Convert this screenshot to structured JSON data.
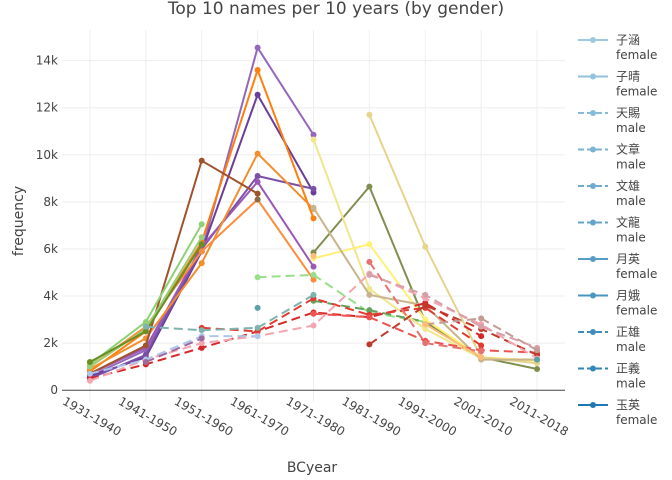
{
  "chart_data": {
    "type": "line",
    "title": "Top 10 names per 10 years (by gender)",
    "xlabel": "BCyear",
    "ylabel": "frequency",
    "categories": [
      "1931-1940",
      "1941-1950",
      "1951-1960",
      "1961-1970",
      "1971-1980",
      "1981-1990",
      "1991-2000",
      "2001-2010",
      "2011-2018"
    ],
    "y_ticks": [
      {
        "value": 0,
        "label": "0"
      },
      {
        "value": 2000,
        "label": "2k"
      },
      {
        "value": 4000,
        "label": "4k"
      },
      {
        "value": 6000,
        "label": "6k"
      },
      {
        "value": 8000,
        "label": "8k"
      },
      {
        "value": 10000,
        "label": "10k"
      },
      {
        "value": 12000,
        "label": "12k"
      },
      {
        "value": 14000,
        "label": "14k"
      }
    ],
    "ylim": [
      -500,
      15300
    ],
    "grid": true,
    "legend_position": "right",
    "legend": [
      {
        "name": "子涵",
        "group": "female",
        "color": "#9ecae1",
        "dash": "solid"
      },
      {
        "name": "子晴",
        "group": "female",
        "color": "#92c2de",
        "dash": "solid"
      },
      {
        "name": "天賜",
        "group": "male",
        "color": "#86bbd8",
        "dash": "dash"
      },
      {
        "name": "文章",
        "group": "male",
        "color": "#7ab3d3",
        "dash": "dash"
      },
      {
        "name": "文雄",
        "group": "male",
        "color": "#6eaccf",
        "dash": "dash"
      },
      {
        "name": "文龍",
        "group": "male",
        "color": "#62a4ca",
        "dash": "dash"
      },
      {
        "name": "月英",
        "group": "female",
        "color": "#569cc6",
        "dash": "solid"
      },
      {
        "name": "月娥",
        "group": "female",
        "color": "#4a95c1",
        "dash": "solid"
      },
      {
        "name": "正雄",
        "group": "male",
        "color": "#3e8dbc",
        "dash": "dash"
      },
      {
        "name": "正義",
        "group": "male",
        "color": "#3286b8",
        "dash": "dash"
      },
      {
        "name": "玉英",
        "group": "female",
        "color": "#1f77b4",
        "dash": "solid"
      }
    ],
    "series": [
      {
        "color": "#9467bd",
        "dash": "solid",
        "values": [
          600,
          1700,
          5900,
          14550,
          10850,
          null,
          null,
          null,
          null
        ]
      },
      {
        "color": "#6a3d9a",
        "dash": "solid",
        "values": [
          600,
          1400,
          5900,
          12550,
          8400,
          null,
          null,
          null,
          null
        ]
      },
      {
        "color": "#7b4fa8",
        "dash": "solid",
        "values": [
          500,
          1500,
          6000,
          9100,
          8550,
          null,
          null,
          null,
          null
        ]
      },
      {
        "color": "#9b59b6",
        "dash": "solid",
        "values": [
          700,
          1800,
          6100,
          8850,
          5250,
          null,
          null,
          null,
          null
        ]
      },
      {
        "color": "#ff7f0e",
        "dash": "solid",
        "values": [
          800,
          2500,
          6300,
          13600,
          7300,
          null,
          null,
          null,
          null
        ]
      },
      {
        "color": "#f28e2b",
        "dash": "solid",
        "values": [
          900,
          2200,
          5400,
          10050,
          7700,
          null,
          null,
          null,
          null
        ]
      },
      {
        "color": "#fd8d3c",
        "dash": "solid",
        "values": [
          1000,
          2700,
          5900,
          8100,
          4700,
          null,
          null,
          null,
          null
        ]
      },
      {
        "color": "#a0522d",
        "dash": "solid",
        "values": [
          700,
          1900,
          9750,
          8350,
          null,
          null,
          null,
          null,
          null
        ]
      },
      {
        "color": "#8b6a4a",
        "dash": "solid",
        "values": [
          null,
          null,
          null,
          8100,
          null,
          null,
          null,
          null,
          null
        ]
      },
      {
        "color": "#8fd175",
        "dash": "solid",
        "values": [
          1100,
          2900,
          7050,
          null,
          null,
          null,
          null,
          null,
          null
        ]
      },
      {
        "color": "#9acd78",
        "dash": "solid",
        "values": [
          1000,
          2600,
          6500,
          null,
          null,
          null,
          null,
          null,
          null
        ]
      },
      {
        "color": "#6b8e23",
        "dash": "solid",
        "values": [
          1200,
          2500,
          6200,
          null,
          null,
          null,
          null,
          null,
          null
        ]
      },
      {
        "color": "#808f4f",
        "dash": "solid",
        "values": [
          null,
          null,
          null,
          null,
          5850,
          8650,
          2900,
          1400,
          900
        ]
      },
      {
        "color": "#98df8a",
        "dash": "dash",
        "values": [
          null,
          null,
          null,
          4800,
          4900,
          3300,
          2900,
          null,
          null
        ]
      },
      {
        "color": "#66a061",
        "dash": "dash",
        "values": [
          null,
          null,
          null,
          null,
          3800,
          3400,
          2900,
          null,
          null
        ]
      },
      {
        "color": "#f0e68c",
        "dash": "solid",
        "values": [
          null,
          null,
          null,
          null,
          10650,
          4300,
          2600,
          1350,
          1300
        ]
      },
      {
        "color": "#fff176",
        "dash": "solid",
        "values": [
          null,
          null,
          null,
          null,
          5600,
          6200,
          3000,
          1400,
          1250
        ]
      },
      {
        "color": "#e6d38c",
        "dash": "solid",
        "values": [
          null,
          null,
          null,
          null,
          null,
          11700,
          6100,
          1400,
          1150
        ]
      },
      {
        "color": "#c8b48c",
        "dash": "solid",
        "values": [
          null,
          null,
          null,
          null,
          7750,
          4050,
          3600,
          1300,
          1300
        ]
      },
      {
        "color": "#d62728",
        "dash": "dash",
        "values": [
          500,
          1100,
          1800,
          2500,
          3300,
          3100,
          3700,
          2300,
          null
        ]
      },
      {
        "color": "#e03c31",
        "dash": "dash",
        "values": [
          null,
          null,
          2650,
          2500,
          3900,
          3200,
          3500,
          1900,
          null
        ]
      },
      {
        "color": "#ef5350",
        "dash": "dash",
        "values": [
          null,
          null,
          null,
          null,
          3250,
          3100,
          2100,
          1700,
          1600
        ]
      },
      {
        "color": "#e57373",
        "dash": "dash",
        "values": [
          null,
          null,
          null,
          null,
          null,
          5450,
          2000,
          1650,
          null
        ]
      },
      {
        "color": "#c0392b",
        "dash": "dash",
        "values": [
          null,
          null,
          null,
          null,
          null,
          1950,
          3600,
          2600,
          1500
        ]
      },
      {
        "color": "#f4a6b0",
        "dash": "dash",
        "values": [
          400,
          1300,
          2000,
          2300,
          2750,
          4950,
          3900,
          2800,
          1350
        ]
      },
      {
        "color": "#d6a0a8",
        "dash": "dash",
        "values": [
          null,
          null,
          null,
          null,
          null,
          4900,
          4050,
          2700,
          1800
        ]
      },
      {
        "color": "#c49c94",
        "dash": "dash",
        "values": [
          null,
          null,
          null,
          null,
          null,
          null,
          2800,
          3050,
          1700
        ]
      },
      {
        "color": "#7fb3b0",
        "dash": "dash",
        "values": [
          null,
          2700,
          2550,
          2650,
          4050,
          null,
          null,
          null,
          null
        ]
      },
      {
        "color": "#aec7e8",
        "dash": "dash",
        "values": [
          700,
          1300,
          2300,
          2300,
          null,
          null,
          null,
          null,
          null
        ]
      },
      {
        "color": "#5aa0a8",
        "dash": "dash",
        "values": [
          null,
          null,
          null,
          3500,
          null,
          null,
          null,
          null,
          1300
        ]
      },
      {
        "color": "#9e6a9e",
        "dash": "dash",
        "values": [
          null,
          1200,
          2200,
          null,
          null,
          null,
          null,
          null,
          null
        ]
      },
      {
        "color": "#ffbb78",
        "dash": "solid",
        "values": [
          null,
          null,
          null,
          null,
          5700,
          null,
          2800,
          1400,
          null
        ]
      }
    ]
  }
}
